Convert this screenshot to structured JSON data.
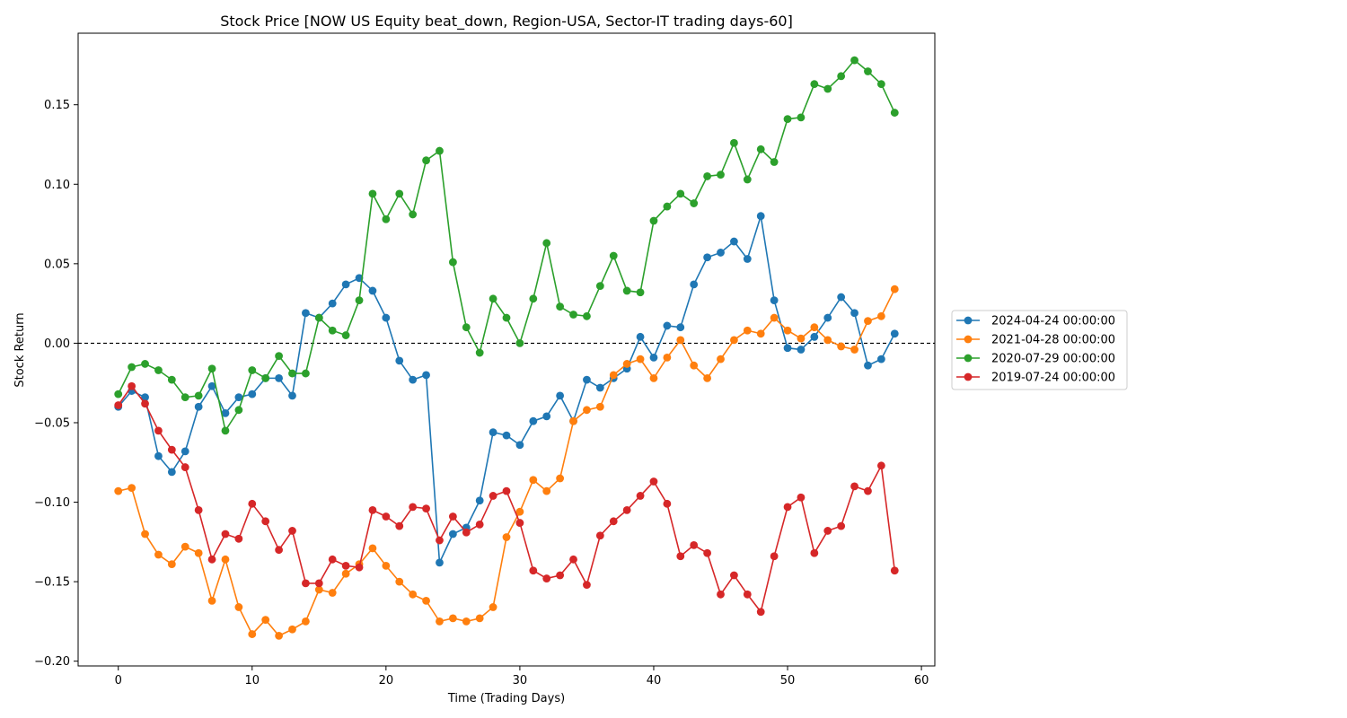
{
  "chart_data": {
    "type": "line",
    "title": "Stock Price [NOW US Equity beat_down, Region-USA, Sector-IT trading days-60]",
    "xlabel": "Time (Trading Days)",
    "ylabel": "Stock Return",
    "xlim": [
      -3,
      61
    ],
    "ylim": [
      -0.203,
      0.195
    ],
    "xticks": [
      0,
      10,
      20,
      30,
      40,
      50,
      60
    ],
    "yticks": [
      -0.2,
      -0.15,
      -0.1,
      -0.05,
      0.0,
      0.05,
      0.1,
      0.15
    ],
    "ytick_labels": [
      "−0.20",
      "−0.15",
      "−0.10",
      "−0.05",
      "0.00",
      "0.05",
      "0.10",
      "0.15"
    ],
    "reference_line": {
      "y": 0,
      "style": "dashed",
      "color": "#000000"
    },
    "grid": false,
    "legend_position": "outside-right",
    "series": [
      {
        "name": "2024-04-24 00:00:00",
        "color": "#1f77b4",
        "values": [
          -0.04,
          -0.03,
          -0.034,
          -0.071,
          -0.081,
          -0.068,
          -0.04,
          -0.027,
          -0.044,
          -0.034,
          -0.032,
          -0.022,
          -0.022,
          -0.033,
          0.019,
          0.016,
          0.025,
          0.037,
          0.041,
          0.033,
          0.016,
          -0.011,
          -0.023,
          -0.02,
          -0.138,
          -0.12,
          -0.116,
          -0.099,
          -0.056,
          -0.058,
          -0.064,
          -0.049,
          -0.046,
          -0.033,
          -0.049,
          -0.023,
          -0.028,
          -0.022,
          -0.016,
          0.004,
          -0.009,
          0.011,
          0.01,
          0.037,
          0.054,
          0.057,
          0.064,
          0.053,
          0.08,
          0.027,
          -0.003,
          -0.004,
          0.004,
          0.016,
          0.029,
          0.019,
          -0.014,
          -0.01,
          0.006
        ]
      },
      {
        "name": "2021-04-28 00:00:00",
        "color": "#ff7f0e",
        "values": [
          -0.093,
          -0.091,
          -0.12,
          -0.133,
          -0.139,
          -0.128,
          -0.132,
          -0.162,
          -0.136,
          -0.166,
          -0.183,
          -0.174,
          -0.184,
          -0.18,
          -0.175,
          -0.155,
          -0.157,
          -0.145,
          -0.139,
          -0.129,
          -0.14,
          -0.15,
          -0.158,
          -0.162,
          -0.175,
          -0.173,
          -0.175,
          -0.173,
          -0.166,
          -0.122,
          -0.106,
          -0.086,
          -0.093,
          -0.085,
          -0.049,
          -0.042,
          -0.04,
          -0.02,
          -0.013,
          -0.01,
          -0.022,
          -0.009,
          0.002,
          -0.014,
          -0.022,
          -0.01,
          0.002,
          0.008,
          0.006,
          0.016,
          0.008,
          0.003,
          0.01,
          0.002,
          -0.002,
          -0.004,
          0.014,
          0.017,
          0.034
        ]
      },
      {
        "name": "2020-07-29 00:00:00",
        "color": "#2ca02c",
        "values": [
          -0.032,
          -0.015,
          -0.013,
          -0.017,
          -0.023,
          -0.034,
          -0.033,
          -0.016,
          -0.055,
          -0.042,
          -0.017,
          -0.022,
          -0.008,
          -0.019,
          -0.019,
          0.016,
          0.008,
          0.005,
          0.027,
          0.094,
          0.078,
          0.094,
          0.081,
          0.115,
          0.121,
          0.051,
          0.01,
          -0.006,
          0.028,
          0.016,
          0.0,
          0.028,
          0.063,
          0.023,
          0.018,
          0.017,
          0.036,
          0.055,
          0.033,
          0.032,
          0.077,
          0.086,
          0.094,
          0.088,
          0.105,
          0.106,
          0.126,
          0.103,
          0.122,
          0.114,
          0.141,
          0.142,
          0.163,
          0.16,
          0.168,
          0.178,
          0.171,
          0.163,
          0.145
        ]
      },
      {
        "name": "2019-07-24 00:00:00",
        "color": "#d62728",
        "values": [
          -0.039,
          -0.027,
          -0.038,
          -0.055,
          -0.067,
          -0.078,
          -0.105,
          -0.136,
          -0.12,
          -0.123,
          -0.101,
          -0.112,
          -0.13,
          -0.118,
          -0.151,
          -0.151,
          -0.136,
          -0.14,
          -0.141,
          -0.105,
          -0.109,
          -0.115,
          -0.103,
          -0.104,
          -0.124,
          -0.109,
          -0.119,
          -0.114,
          -0.096,
          -0.093,
          -0.113,
          -0.143,
          -0.148,
          -0.146,
          -0.136,
          -0.152,
          -0.121,
          -0.112,
          -0.105,
          -0.096,
          -0.087,
          -0.101,
          -0.134,
          -0.127,
          -0.132,
          -0.158,
          -0.146,
          -0.158,
          -0.169,
          -0.134,
          -0.103,
          -0.097,
          -0.132,
          -0.118,
          -0.115,
          -0.09,
          -0.093,
          -0.077,
          -0.143
        ]
      }
    ]
  }
}
